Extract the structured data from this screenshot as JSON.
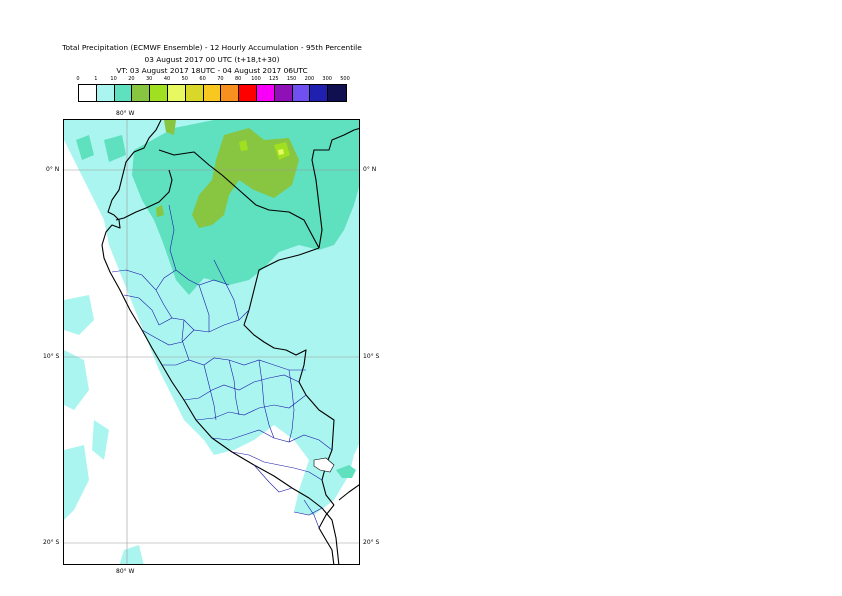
{
  "title": {
    "line1": "Total Precipitation (ECMWF Ensemble) - 12 Hourly Accumulation - 95th Percentile",
    "line2": "03 August 2017 00 UTC (t+18,t+30)",
    "line3": "VT: 03 August 2017 18UTC - 04 August 2017 06UTC"
  },
  "legend": {
    "labels": [
      "0",
      "1",
      "10",
      "20",
      "30",
      "40",
      "50",
      "60",
      "70",
      "80",
      "100",
      "125",
      "150",
      "200",
      "300",
      "500"
    ],
    "colors": [
      "#ffffff",
      "#aaf5f0",
      "#5fe0be",
      "#88c540",
      "#a0e020",
      "#e8f860",
      "#d8d828",
      "#f8c820",
      "#f89020",
      "#ff0000",
      "#f800f8",
      "#9010b8",
      "#7050f0",
      "#2020b0",
      "#101050"
    ]
  },
  "map": {
    "lon_label_top": "80° W",
    "lon_label_bottom": "80° W",
    "lat_labels": {
      "left": [
        "0° N",
        "10° S",
        "20° S"
      ],
      "right": [
        "0° N",
        "10° S",
        "20° S"
      ]
    }
  }
}
